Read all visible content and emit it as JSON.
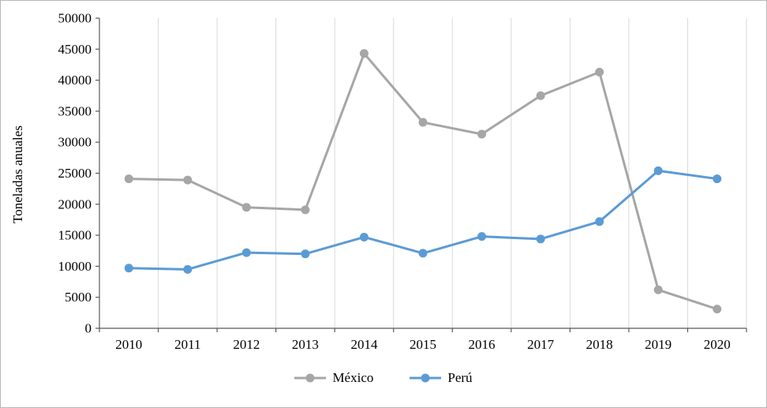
{
  "figure": {
    "ylabel": "Toneladas anuales"
  },
  "chart_data": {
    "type": "line",
    "title": "",
    "xlabel": "",
    "ylabel": "Toneladas anuales",
    "categories": [
      "2010",
      "2011",
      "2012",
      "2013",
      "2014",
      "2015",
      "2016",
      "2017",
      "2018",
      "2019",
      "2020"
    ],
    "series": [
      {
        "name": "México",
        "color": "#a6a6a6",
        "values": [
          24100,
          23900,
          19500,
          19100,
          44300,
          33200,
          31300,
          37500,
          41300,
          6200,
          3100
        ]
      },
      {
        "name": "Perú",
        "color": "#5b9bd5",
        "values": [
          9700,
          9500,
          12200,
          12000,
          14700,
          12100,
          14800,
          14400,
          17200,
          25400,
          24100
        ]
      }
    ],
    "ylim": [
      0,
      50000
    ],
    "y_ticks": [
      0,
      5000,
      10000,
      15000,
      20000,
      25000,
      30000,
      35000,
      40000,
      45000,
      50000
    ],
    "grid": "vertical",
    "legend_position": "bottom",
    "colors": {
      "gridline": "#d9d9d9",
      "axis": "#595959",
      "text": "#000000"
    }
  }
}
